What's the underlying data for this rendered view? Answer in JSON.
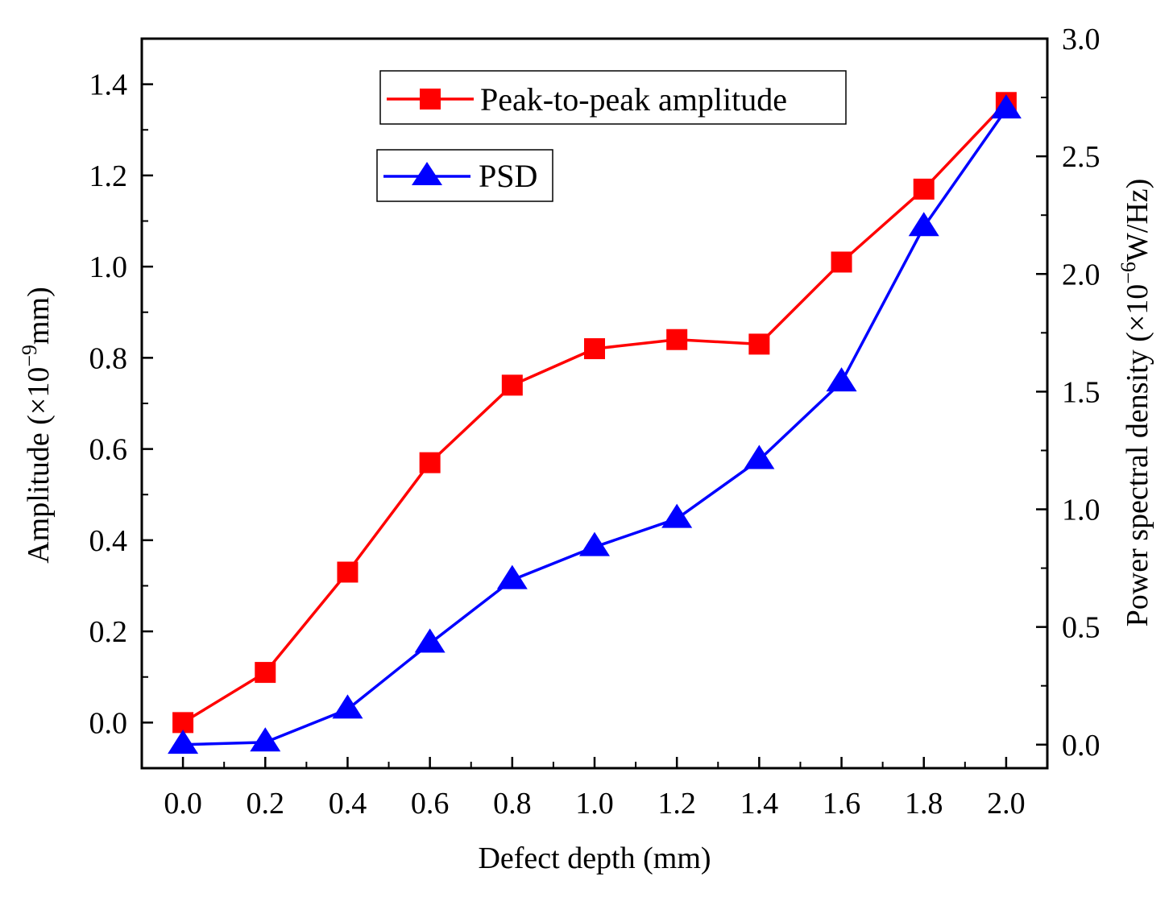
{
  "chart_data": {
    "type": "line",
    "title": "",
    "xlabel": "Defect depth (mm)",
    "ylabel": {
      "prefix": "Amplitude (×10",
      "sup": "−9",
      "suffix": "mm)"
    },
    "y2label": {
      "prefix": "Power spectral density (×10",
      "sup": "−6",
      "suffix": "W/Hz)"
    },
    "x": [
      0.0,
      0.2,
      0.4,
      0.6,
      0.8,
      1.0,
      1.2,
      1.4,
      1.6,
      1.8,
      2.0
    ],
    "xlim": [
      -0.1,
      2.1
    ],
    "ylim": [
      -0.1,
      1.5
    ],
    "y2lim": [
      -0.1,
      3.0
    ],
    "xticks": [
      "0.0",
      "0.2",
      "0.4",
      "0.6",
      "0.8",
      "1.0",
      "1.2",
      "1.4",
      "1.6",
      "1.8",
      "2.0"
    ],
    "yticks": [
      "0.0",
      "0.2",
      "0.4",
      "0.6",
      "0.8",
      "1.0",
      "1.2",
      "1.4"
    ],
    "y2ticks": [
      "0.0",
      "0.5",
      "1.0",
      "1.5",
      "2.0",
      "2.5",
      "3.0"
    ],
    "series": [
      {
        "name": "Peak-to-peak amplitude",
        "axis": "left",
        "color": "#ff0000",
        "marker": "square",
        "values": [
          0.0,
          0.11,
          0.33,
          0.57,
          0.74,
          0.82,
          0.84,
          0.83,
          1.01,
          1.17,
          1.36
        ]
      },
      {
        "name": "PSD",
        "axis": "right",
        "color": "#0000ff",
        "marker": "triangle",
        "values": [
          0.0,
          0.01,
          0.15,
          0.43,
          0.7,
          0.84,
          0.96,
          1.21,
          1.54,
          2.2,
          2.7
        ]
      }
    ]
  }
}
